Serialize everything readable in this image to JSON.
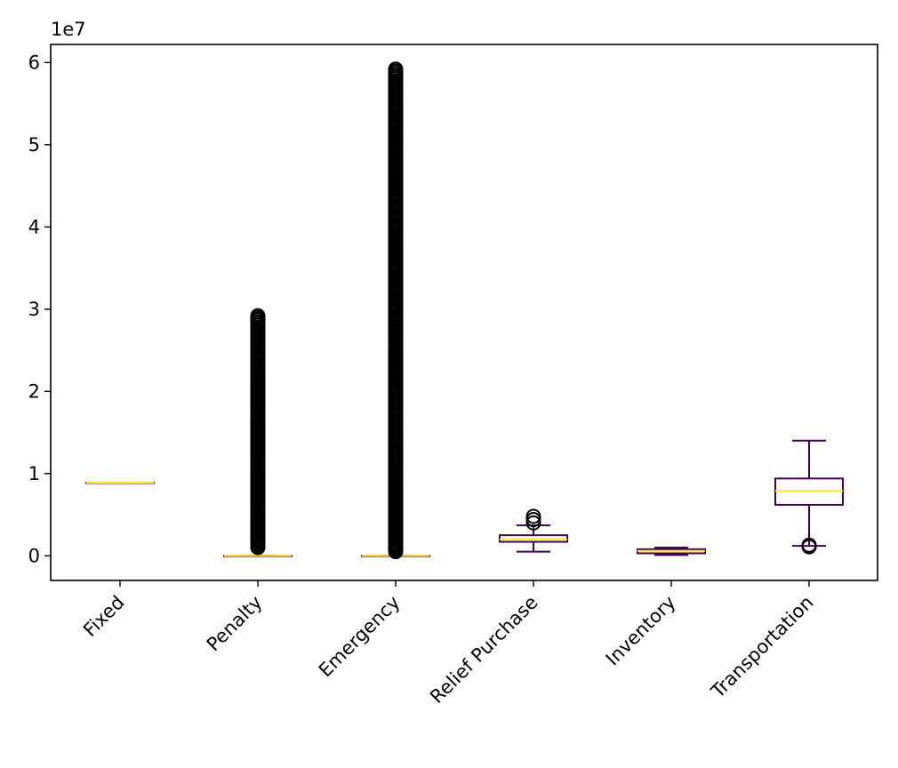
{
  "chart_data": {
    "type": "box",
    "title": "",
    "xlabel": "",
    "ylabel": "",
    "y_offset_label": "1e7",
    "ylim": [
      -0.3,
      6.22
    ],
    "yticks": [
      0,
      1,
      2,
      3,
      4,
      5,
      6
    ],
    "ytick_labels": [
      "0",
      "1",
      "2",
      "3",
      "4",
      "5",
      "6"
    ],
    "xtick_rotation_deg": 45,
    "grid": false,
    "colors": {
      "box": "#440154",
      "median": "#fde725",
      "flier": "#000000"
    },
    "categories": [
      "Fixed",
      "Penalty",
      "Emergency",
      "Relief Purchase",
      "Inventory",
      "Transportation"
    ],
    "boxes": [
      {
        "label": "Fixed",
        "whislo": 0.89,
        "q1": 0.89,
        "med": 0.89,
        "q3": 0.89,
        "whishi": 0.89,
        "fliers": []
      },
      {
        "label": "Penalty",
        "whislo": 0.0,
        "q1": 0.0,
        "med": 0.0,
        "q3": 0.0,
        "whishi": 0.0,
        "fliers": [
          2.92,
          2.1,
          2.05,
          2.0,
          1.9,
          1.75,
          1.6,
          1.45,
          1.3,
          1.15,
          1.0,
          0.85,
          0.7,
          0.55,
          0.4,
          0.25,
          0.1
        ]
      },
      {
        "label": "Emergency",
        "whislo": 0.0,
        "q1": 0.0,
        "med": 0.0,
        "q3": 0.0,
        "whishi": 0.0,
        "fliers": [
          5.92,
          5.5,
          5.0,
          4.5,
          4.0,
          3.5,
          3.0,
          2.5,
          2.0,
          1.7,
          1.4,
          1.1,
          0.85,
          0.6,
          0.45,
          0.3,
          0.15,
          0.05
        ]
      },
      {
        "label": "Relief Purchase",
        "whislo": 0.05,
        "q1": 0.17,
        "med": 0.2,
        "q3": 0.25,
        "whishi": 0.37,
        "fliers": [
          0.4,
          0.44,
          0.48
        ]
      },
      {
        "label": "Inventory",
        "whislo": 0.01,
        "q1": 0.03,
        "med": 0.06,
        "q3": 0.08,
        "whishi": 0.1,
        "fliers": []
      },
      {
        "label": "Transportation",
        "whislo": 0.12,
        "q1": 0.62,
        "med": 0.79,
        "q3": 0.94,
        "whishi": 1.4,
        "fliers": [
          0.11,
          0.13
        ]
      }
    ]
  }
}
